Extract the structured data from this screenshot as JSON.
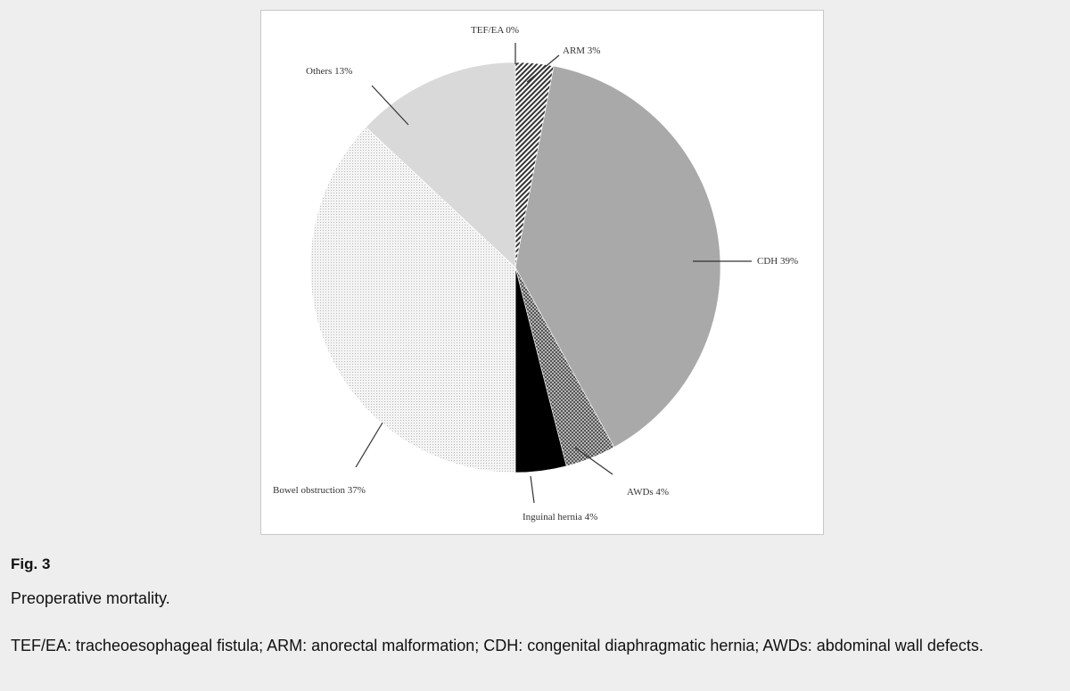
{
  "caption": {
    "label": "Fig. 3",
    "title": "Preoperative mortality.",
    "note": "TEF/EA: tracheoesophageal fistula; ARM: anorectal malformation; CDH: congenital diaphragmatic hernia; AWDs: abdominal wall defects."
  },
  "chart_data": {
    "type": "pie",
    "title": "",
    "slices": [
      {
        "name": "TEF/EA",
        "value": 0,
        "label": "TEF/EA 0%",
        "fill": "#ffffff",
        "pattern": "none"
      },
      {
        "name": "ARM",
        "value": 3,
        "label": "ARM 3%",
        "fill": "#555555",
        "pattern": "diagonal-hatch"
      },
      {
        "name": "CDH",
        "value": 39,
        "label": "CDH 39%",
        "fill": "#a9a9a9",
        "pattern": "solid"
      },
      {
        "name": "AWDs",
        "value": 4,
        "label": "AWDs 4%",
        "fill": "#8a8a8a",
        "pattern": "checker"
      },
      {
        "name": "Inguinal hernia",
        "value": 4,
        "label": "Inguinal hernia 4%",
        "fill": "#000000",
        "pattern": "solid"
      },
      {
        "name": "Bowel obstruction",
        "value": 37,
        "label": "Bowel obstruction 37%",
        "fill": "#ececec",
        "pattern": "dots"
      },
      {
        "name": "Others",
        "value": 13,
        "label": "Others 13%",
        "fill": "#d9d9d9",
        "pattern": "solid"
      }
    ],
    "start": "12 o'clock",
    "direction": "clockwise"
  }
}
